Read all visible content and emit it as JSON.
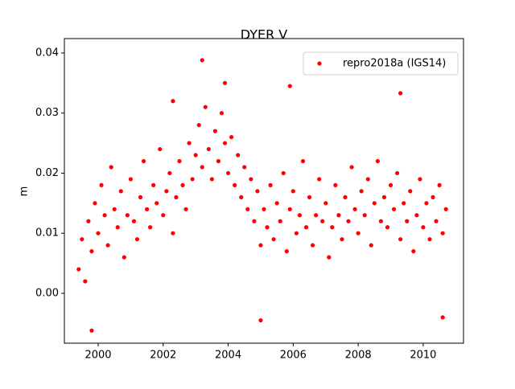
{
  "chart_data": {
    "type": "scatter",
    "title": "DYER V",
    "ylabel": "m",
    "series": [
      {
        "name": "repro2018a (IGS14)",
        "color": "#ff0000",
        "x": [
          1999.4,
          1999.5,
          1999.6,
          1999.7,
          1999.8,
          1999.9,
          2000.0,
          2000.1,
          2000.2,
          2000.3,
          2000.4,
          2000.5,
          2000.6,
          2000.7,
          2000.8,
          2000.9,
          2001.0,
          2001.1,
          2001.2,
          2001.3,
          2001.4,
          2001.5,
          2001.6,
          2001.7,
          2001.8,
          2001.9,
          2002.0,
          2002.1,
          2002.2,
          2002.3,
          2002.4,
          2002.5,
          2002.6,
          2002.7,
          2002.8,
          2002.9,
          2003.0,
          2003.1,
          2003.2,
          2003.3,
          2003.4,
          2003.5,
          2003.6,
          2003.7,
          2003.8,
          2003.9,
          2004.0,
          2004.1,
          2004.2,
          2004.3,
          2004.4,
          2004.5,
          2004.6,
          2004.7,
          2004.8,
          2004.9,
          2005.0,
          2005.1,
          2005.2,
          2005.3,
          2005.4,
          2005.5,
          2005.6,
          2005.7,
          2005.8,
          2005.9,
          2006.0,
          2006.1,
          2006.2,
          2006.3,
          2006.4,
          2006.5,
          2006.6,
          2006.7,
          2006.8,
          2006.9,
          2007.0,
          2007.1,
          2007.2,
          2007.3,
          2007.4,
          2007.5,
          2007.6,
          2007.7,
          2007.8,
          2007.9,
          2008.0,
          2008.1,
          2008.2,
          2008.3,
          2008.4,
          2008.5,
          2008.6,
          2008.7,
          2008.8,
          2008.9,
          2009.0,
          2009.1,
          2009.2,
          2009.3,
          2009.4,
          2009.5,
          2009.6,
          2009.7,
          2009.8,
          2009.9,
          2010.0,
          2010.1,
          2010.2,
          2010.3,
          2010.4,
          2010.5,
          2010.6,
          2010.7,
          2003.2,
          2005.9,
          2009.3,
          2005.0,
          1999.8,
          2010.6,
          2003.9,
          2002.3
        ],
        "values": [
          0.004,
          0.009,
          0.002,
          0.012,
          0.007,
          0.015,
          0.01,
          0.018,
          0.013,
          0.008,
          0.021,
          0.014,
          0.011,
          0.017,
          0.006,
          0.013,
          0.019,
          0.012,
          0.009,
          0.016,
          0.022,
          0.014,
          0.011,
          0.018,
          0.015,
          0.024,
          0.013,
          0.017,
          0.02,
          0.01,
          0.016,
          0.022,
          0.018,
          0.014,
          0.025,
          0.019,
          0.023,
          0.028,
          0.021,
          0.031,
          0.024,
          0.019,
          0.027,
          0.022,
          0.03,
          0.025,
          0.02,
          0.026,
          0.018,
          0.023,
          0.016,
          0.021,
          0.014,
          0.019,
          0.012,
          0.017,
          0.008,
          0.014,
          0.011,
          0.018,
          0.009,
          0.015,
          0.012,
          0.02,
          0.007,
          0.014,
          0.017,
          0.01,
          0.013,
          0.022,
          0.011,
          0.016,
          0.008,
          0.013,
          0.019,
          0.012,
          0.015,
          0.006,
          0.011,
          0.018,
          0.013,
          0.009,
          0.016,
          0.012,
          0.021,
          0.014,
          0.01,
          0.017,
          0.013,
          0.019,
          0.008,
          0.015,
          0.022,
          0.012,
          0.016,
          0.011,
          0.018,
          0.014,
          0.02,
          0.009,
          0.015,
          0.012,
          0.017,
          0.007,
          0.013,
          0.019,
          0.011,
          0.015,
          0.009,
          0.016,
          0.012,
          0.018,
          0.01,
          0.014,
          0.0388,
          0.0345,
          0.0333,
          -0.0045,
          -0.0062,
          -0.004,
          0.035,
          0.032
        ]
      }
    ],
    "xlim": [
      1998.96,
      2011.24
    ],
    "xticks": [
      2000,
      2002,
      2004,
      2006,
      2008,
      2010
    ],
    "ylim": [
      -0.0083,
      0.0424
    ],
    "yticks": [
      {
        "value": 0,
        "label": "0.00"
      },
      {
        "value": 0.01,
        "label": "0.01"
      },
      {
        "value": 0.02,
        "label": "0.02"
      },
      {
        "value": 0.03,
        "label": "0.03"
      },
      {
        "value": 0.04,
        "label": "0.04"
      }
    ],
    "grid": false,
    "legend": "upper right"
  }
}
